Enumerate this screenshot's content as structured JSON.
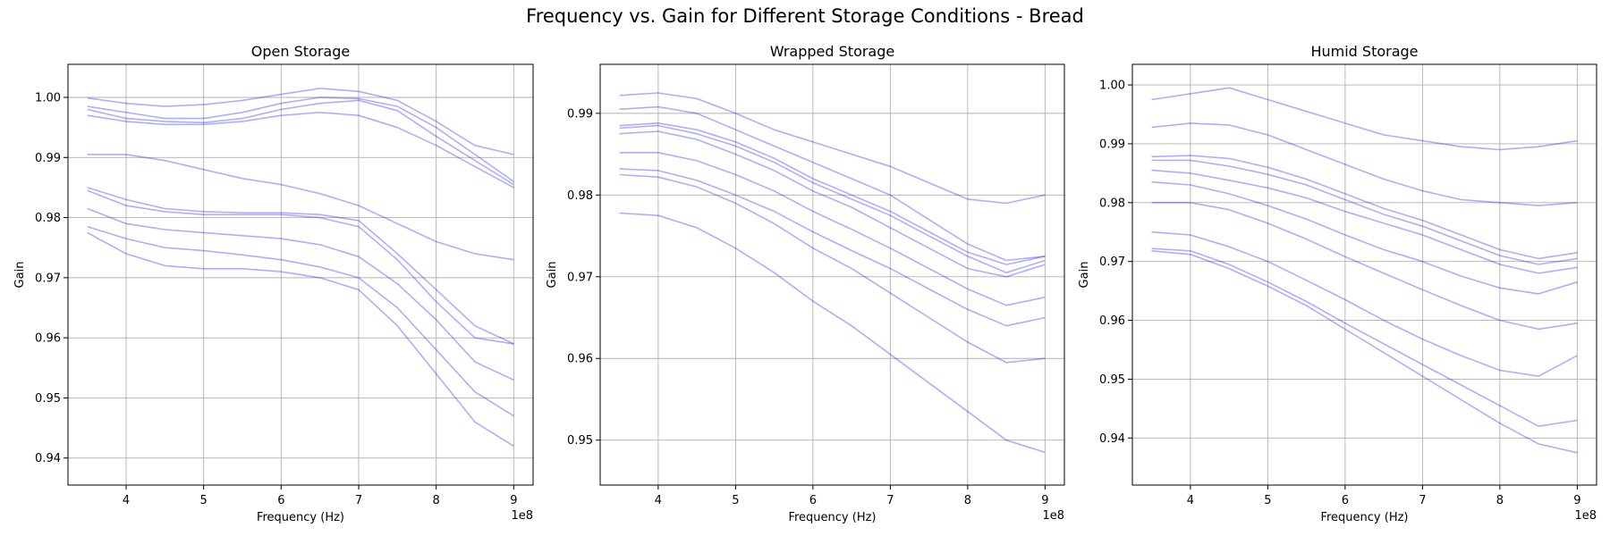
{
  "figure": {
    "title": "Frequency vs. Gain for Different Storage Conditions - Bread"
  },
  "colors": {
    "series": "#0000ff",
    "grid": "#b0b0b0"
  },
  "chart_data": [
    {
      "type": "line",
      "title": "Open Storage",
      "xlabel": "Frequency (Hz)",
      "ylabel": "Gain",
      "x_offset_label": "1e8",
      "grid": true,
      "xlim": [
        325000000,
        925000000
      ],
      "ylim": [
        0.9355,
        1.0055
      ],
      "xticks": [
        400000000,
        500000000,
        600000000,
        700000000,
        800000000,
        900000000
      ],
      "xtick_labels": [
        "4",
        "5",
        "6",
        "7",
        "8",
        "9"
      ],
      "yticks": [
        0.94,
        0.95,
        0.96,
        0.97,
        0.98,
        0.99,
        1.0
      ],
      "ytick_labels": [
        "0.94",
        "0.95",
        "0.96",
        "0.97",
        "0.98",
        "0.99",
        "1.00"
      ],
      "x_range": [
        350000000,
        900000000
      ],
      "series": [
        {
          "x": [
            350000000,
            400000000,
            450000000,
            500000000,
            550000000,
            600000000,
            650000000,
            700000000,
            750000000,
            800000000,
            850000000,
            900000000
          ],
          "y": [
            0.9999,
            0.999,
            0.9985,
            0.9988,
            0.9995,
            1.0005,
            1.0015,
            1.001,
            0.9995,
            0.996,
            0.992,
            0.9905
          ]
        },
        {
          "x": [
            350000000,
            400000000,
            450000000,
            500000000,
            550000000,
            600000000,
            650000000,
            700000000,
            750000000,
            800000000,
            850000000,
            900000000
          ],
          "y": [
            0.9985,
            0.9975,
            0.9965,
            0.9965,
            0.9975,
            0.999,
            1.0,
            0.9998,
            0.9985,
            0.995,
            0.9905,
            0.986
          ]
        },
        {
          "x": [
            350000000,
            400000000,
            450000000,
            500000000,
            550000000,
            600000000,
            650000000,
            700000000,
            750000000,
            800000000,
            850000000,
            900000000
          ],
          "y": [
            0.998,
            0.9965,
            0.996,
            0.9958,
            0.9965,
            0.998,
            0.999,
            0.9995,
            0.9978,
            0.9935,
            0.9895,
            0.9855
          ]
        },
        {
          "x": [
            350000000,
            400000000,
            450000000,
            500000000,
            550000000,
            600000000,
            650000000,
            700000000,
            750000000,
            800000000,
            850000000,
            900000000
          ],
          "y": [
            0.997,
            0.996,
            0.9955,
            0.9955,
            0.996,
            0.997,
            0.9975,
            0.997,
            0.995,
            0.992,
            0.9885,
            0.985
          ]
        },
        {
          "x": [
            350000000,
            400000000,
            450000000,
            500000000,
            550000000,
            600000000,
            650000000,
            700000000,
            750000000,
            800000000,
            850000000,
            900000000
          ],
          "y": [
            0.9905,
            0.9905,
            0.9895,
            0.988,
            0.9865,
            0.9855,
            0.984,
            0.982,
            0.979,
            0.976,
            0.974,
            0.973
          ]
        },
        {
          "x": [
            350000000,
            400000000,
            450000000,
            500000000,
            550000000,
            600000000,
            650000000,
            700000000,
            750000000,
            800000000,
            850000000,
            900000000
          ],
          "y": [
            0.985,
            0.983,
            0.9815,
            0.981,
            0.9808,
            0.9808,
            0.9805,
            0.9795,
            0.974,
            0.968,
            0.962,
            0.959
          ]
        },
        {
          "x": [
            350000000,
            400000000,
            450000000,
            500000000,
            550000000,
            600000000,
            650000000,
            700000000,
            750000000,
            800000000,
            850000000,
            900000000
          ],
          "y": [
            0.9845,
            0.982,
            0.981,
            0.9805,
            0.9805,
            0.9805,
            0.98,
            0.9785,
            0.973,
            0.966,
            0.96,
            0.959
          ]
        },
        {
          "x": [
            350000000,
            400000000,
            450000000,
            500000000,
            550000000,
            600000000,
            650000000,
            700000000,
            750000000,
            800000000,
            850000000,
            900000000
          ],
          "y": [
            0.9815,
            0.979,
            0.978,
            0.9775,
            0.977,
            0.9765,
            0.9755,
            0.9735,
            0.969,
            0.963,
            0.956,
            0.953
          ]
        },
        {
          "x": [
            350000000,
            400000000,
            450000000,
            500000000,
            550000000,
            600000000,
            650000000,
            700000000,
            750000000,
            800000000,
            850000000,
            900000000
          ],
          "y": [
            0.9785,
            0.9765,
            0.975,
            0.9745,
            0.9738,
            0.973,
            0.9718,
            0.97,
            0.965,
            0.958,
            0.951,
            0.947
          ]
        },
        {
          "x": [
            350000000,
            400000000,
            450000000,
            500000000,
            550000000,
            600000000,
            650000000,
            700000000,
            750000000,
            800000000,
            850000000,
            900000000
          ],
          "y": [
            0.9775,
            0.974,
            0.972,
            0.9715,
            0.9715,
            0.971,
            0.97,
            0.968,
            0.962,
            0.954,
            0.946,
            0.942
          ]
        }
      ]
    },
    {
      "type": "line",
      "title": "Wrapped Storage",
      "xlabel": "Frequency (Hz)",
      "ylabel": "Gain",
      "x_offset_label": "1e8",
      "grid": true,
      "xlim": [
        325000000,
        925000000
      ],
      "ylim": [
        0.9445,
        0.996
      ],
      "xticks": [
        400000000,
        500000000,
        600000000,
        700000000,
        800000000,
        900000000
      ],
      "xtick_labels": [
        "4",
        "5",
        "6",
        "7",
        "8",
        "9"
      ],
      "yticks": [
        0.95,
        0.96,
        0.97,
        0.98,
        0.99
      ],
      "ytick_labels": [
        "0.95",
        "0.96",
        "0.97",
        "0.98",
        "0.99"
      ],
      "x_range": [
        350000000,
        900000000
      ],
      "series": [
        {
          "x": [
            350000000,
            400000000,
            450000000,
            500000000,
            550000000,
            600000000,
            650000000,
            700000000,
            750000000,
            800000000,
            850000000,
            900000000
          ],
          "y": [
            0.9922,
            0.9925,
            0.9918,
            0.99,
            0.988,
            0.9865,
            0.985,
            0.9835,
            0.9815,
            0.9795,
            0.979,
            0.98
          ]
        },
        {
          "x": [
            350000000,
            400000000,
            450000000,
            500000000,
            550000000,
            600000000,
            650000000,
            700000000,
            750000000,
            800000000,
            850000000,
            900000000
          ],
          "y": [
            0.9905,
            0.9908,
            0.99,
            0.988,
            0.986,
            0.984,
            0.982,
            0.98,
            0.977,
            0.974,
            0.972,
            0.9725
          ]
        },
        {
          "x": [
            350000000,
            400000000,
            450000000,
            500000000,
            550000000,
            600000000,
            650000000,
            700000000,
            750000000,
            800000000,
            850000000,
            900000000
          ],
          "y": [
            0.9885,
            0.9888,
            0.988,
            0.9865,
            0.9845,
            0.982,
            0.98,
            0.978,
            0.9755,
            0.973,
            0.9715,
            0.9725
          ]
        },
        {
          "x": [
            350000000,
            400000000,
            450000000,
            500000000,
            550000000,
            600000000,
            650000000,
            700000000,
            750000000,
            800000000,
            850000000,
            900000000
          ],
          "y": [
            0.9882,
            0.9885,
            0.9875,
            0.986,
            0.984,
            0.9815,
            0.9795,
            0.9775,
            0.975,
            0.9725,
            0.9705,
            0.972
          ]
        },
        {
          "x": [
            350000000,
            400000000,
            450000000,
            500000000,
            550000000,
            600000000,
            650000000,
            700000000,
            750000000,
            800000000,
            850000000,
            900000000
          ],
          "y": [
            0.9875,
            0.9878,
            0.9868,
            0.985,
            0.983,
            0.9805,
            0.9785,
            0.976,
            0.9735,
            0.971,
            0.97,
            0.9715
          ]
        },
        {
          "x": [
            350000000,
            400000000,
            450000000,
            500000000,
            550000000,
            600000000,
            650000000,
            700000000,
            750000000,
            800000000,
            850000000,
            900000000
          ],
          "y": [
            0.9852,
            0.9852,
            0.9842,
            0.9825,
            0.9805,
            0.978,
            0.9758,
            0.9735,
            0.971,
            0.9685,
            0.9665,
            0.9675
          ]
        },
        {
          "x": [
            350000000,
            400000000,
            450000000,
            500000000,
            550000000,
            600000000,
            650000000,
            700000000,
            750000000,
            800000000,
            850000000,
            900000000
          ],
          "y": [
            0.9832,
            0.983,
            0.9818,
            0.98,
            0.978,
            0.9755,
            0.9732,
            0.971,
            0.9685,
            0.966,
            0.964,
            0.965
          ]
        },
        {
          "x": [
            350000000,
            400000000,
            450000000,
            500000000,
            550000000,
            600000000,
            650000000,
            700000000,
            750000000,
            800000000,
            850000000,
            900000000
          ],
          "y": [
            0.9825,
            0.9822,
            0.981,
            0.979,
            0.9765,
            0.9735,
            0.971,
            0.968,
            0.965,
            0.962,
            0.9595,
            0.96
          ]
        },
        {
          "x": [
            350000000,
            400000000,
            450000000,
            500000000,
            550000000,
            600000000,
            650000000,
            700000000,
            750000000,
            800000000,
            850000000,
            900000000
          ],
          "y": [
            0.9778,
            0.9775,
            0.976,
            0.9735,
            0.9705,
            0.967,
            0.964,
            0.9605,
            0.957,
            0.9535,
            0.95,
            0.9485
          ]
        }
      ]
    },
    {
      "type": "line",
      "title": "Humid Storage",
      "xlabel": "Frequency (Hz)",
      "ylabel": "Gain",
      "x_offset_label": "1e8",
      "grid": true,
      "xlim": [
        325000000,
        925000000
      ],
      "ylim": [
        0.932,
        1.0035
      ],
      "xticks": [
        400000000,
        500000000,
        600000000,
        700000000,
        800000000,
        900000000
      ],
      "xtick_labels": [
        "4",
        "5",
        "6",
        "7",
        "8",
        "9"
      ],
      "yticks": [
        0.94,
        0.95,
        0.96,
        0.97,
        0.98,
        0.99,
        1.0
      ],
      "ytick_labels": [
        "0.94",
        "0.95",
        "0.96",
        "0.97",
        "0.98",
        "0.99",
        "1.00"
      ],
      "x_range": [
        350000000,
        900000000
      ],
      "series": [
        {
          "x": [
            350000000,
            400000000,
            450000000,
            500000000,
            550000000,
            600000000,
            650000000,
            700000000,
            750000000,
            800000000,
            850000000,
            900000000
          ],
          "y": [
            0.9975,
            0.9985,
            0.9995,
            0.9975,
            0.9955,
            0.9935,
            0.9915,
            0.9905,
            0.9895,
            0.989,
            0.9895,
            0.9905
          ]
        },
        {
          "x": [
            350000000,
            400000000,
            450000000,
            500000000,
            550000000,
            600000000,
            650000000,
            700000000,
            750000000,
            800000000,
            850000000,
            900000000
          ],
          "y": [
            0.9928,
            0.9935,
            0.9932,
            0.9915,
            0.989,
            0.9865,
            0.984,
            0.982,
            0.9805,
            0.98,
            0.9795,
            0.98
          ]
        },
        {
          "x": [
            350000000,
            400000000,
            450000000,
            500000000,
            550000000,
            600000000,
            650000000,
            700000000,
            750000000,
            800000000,
            850000000,
            900000000
          ],
          "y": [
            0.9878,
            0.988,
            0.9875,
            0.986,
            0.984,
            0.9815,
            0.979,
            0.977,
            0.9745,
            0.972,
            0.9705,
            0.9715
          ]
        },
        {
          "x": [
            350000000,
            400000000,
            450000000,
            500000000,
            550000000,
            600000000,
            650000000,
            700000000,
            750000000,
            800000000,
            850000000,
            900000000
          ],
          "y": [
            0.9872,
            0.9872,
            0.9862,
            0.9848,
            0.983,
            0.9805,
            0.978,
            0.976,
            0.9735,
            0.971,
            0.9695,
            0.9705
          ]
        },
        {
          "x": [
            350000000,
            400000000,
            450000000,
            500000000,
            550000000,
            600000000,
            650000000,
            700000000,
            750000000,
            800000000,
            850000000,
            900000000
          ],
          "y": [
            0.9855,
            0.985,
            0.9838,
            0.9825,
            0.9808,
            0.9785,
            0.9765,
            0.9745,
            0.972,
            0.9695,
            0.968,
            0.969
          ]
        },
        {
          "x": [
            350000000,
            400000000,
            450000000,
            500000000,
            550000000,
            600000000,
            650000000,
            700000000,
            750000000,
            800000000,
            850000000,
            900000000
          ],
          "y": [
            0.9835,
            0.983,
            0.9815,
            0.9795,
            0.9772,
            0.9745,
            0.972,
            0.97,
            0.9675,
            0.9655,
            0.9645,
            0.9665
          ]
        },
        {
          "x": [
            350000000,
            400000000,
            450000000,
            500000000,
            550000000,
            600000000,
            650000000,
            700000000,
            750000000,
            800000000,
            850000000,
            900000000
          ],
          "y": [
            0.98,
            0.98,
            0.9788,
            0.9765,
            0.9738,
            0.9708,
            0.968,
            0.9652,
            0.9625,
            0.96,
            0.9585,
            0.9595
          ]
        },
        {
          "x": [
            350000000,
            400000000,
            450000000,
            500000000,
            550000000,
            600000000,
            650000000,
            700000000,
            750000000,
            800000000,
            850000000,
            900000000
          ],
          "y": [
            0.975,
            0.9745,
            0.9725,
            0.97,
            0.9668,
            0.9635,
            0.96,
            0.9568,
            0.954,
            0.9515,
            0.9505,
            0.954
          ]
        },
        {
          "x": [
            350000000,
            400000000,
            450000000,
            500000000,
            550000000,
            600000000,
            650000000,
            700000000,
            750000000,
            800000000,
            850000000,
            900000000
          ],
          "y": [
            0.9722,
            0.9718,
            0.9695,
            0.9665,
            0.9632,
            0.9595,
            0.956,
            0.9525,
            0.949,
            0.9455,
            0.942,
            0.943
          ]
        },
        {
          "x": [
            350000000,
            400000000,
            450000000,
            500000000,
            550000000,
            600000000,
            650000000,
            700000000,
            750000000,
            800000000,
            850000000,
            900000000
          ],
          "y": [
            0.9718,
            0.9712,
            0.9688,
            0.9658,
            0.9625,
            0.9585,
            0.9545,
            0.9505,
            0.9465,
            0.9425,
            0.939,
            0.9375
          ]
        }
      ]
    }
  ]
}
